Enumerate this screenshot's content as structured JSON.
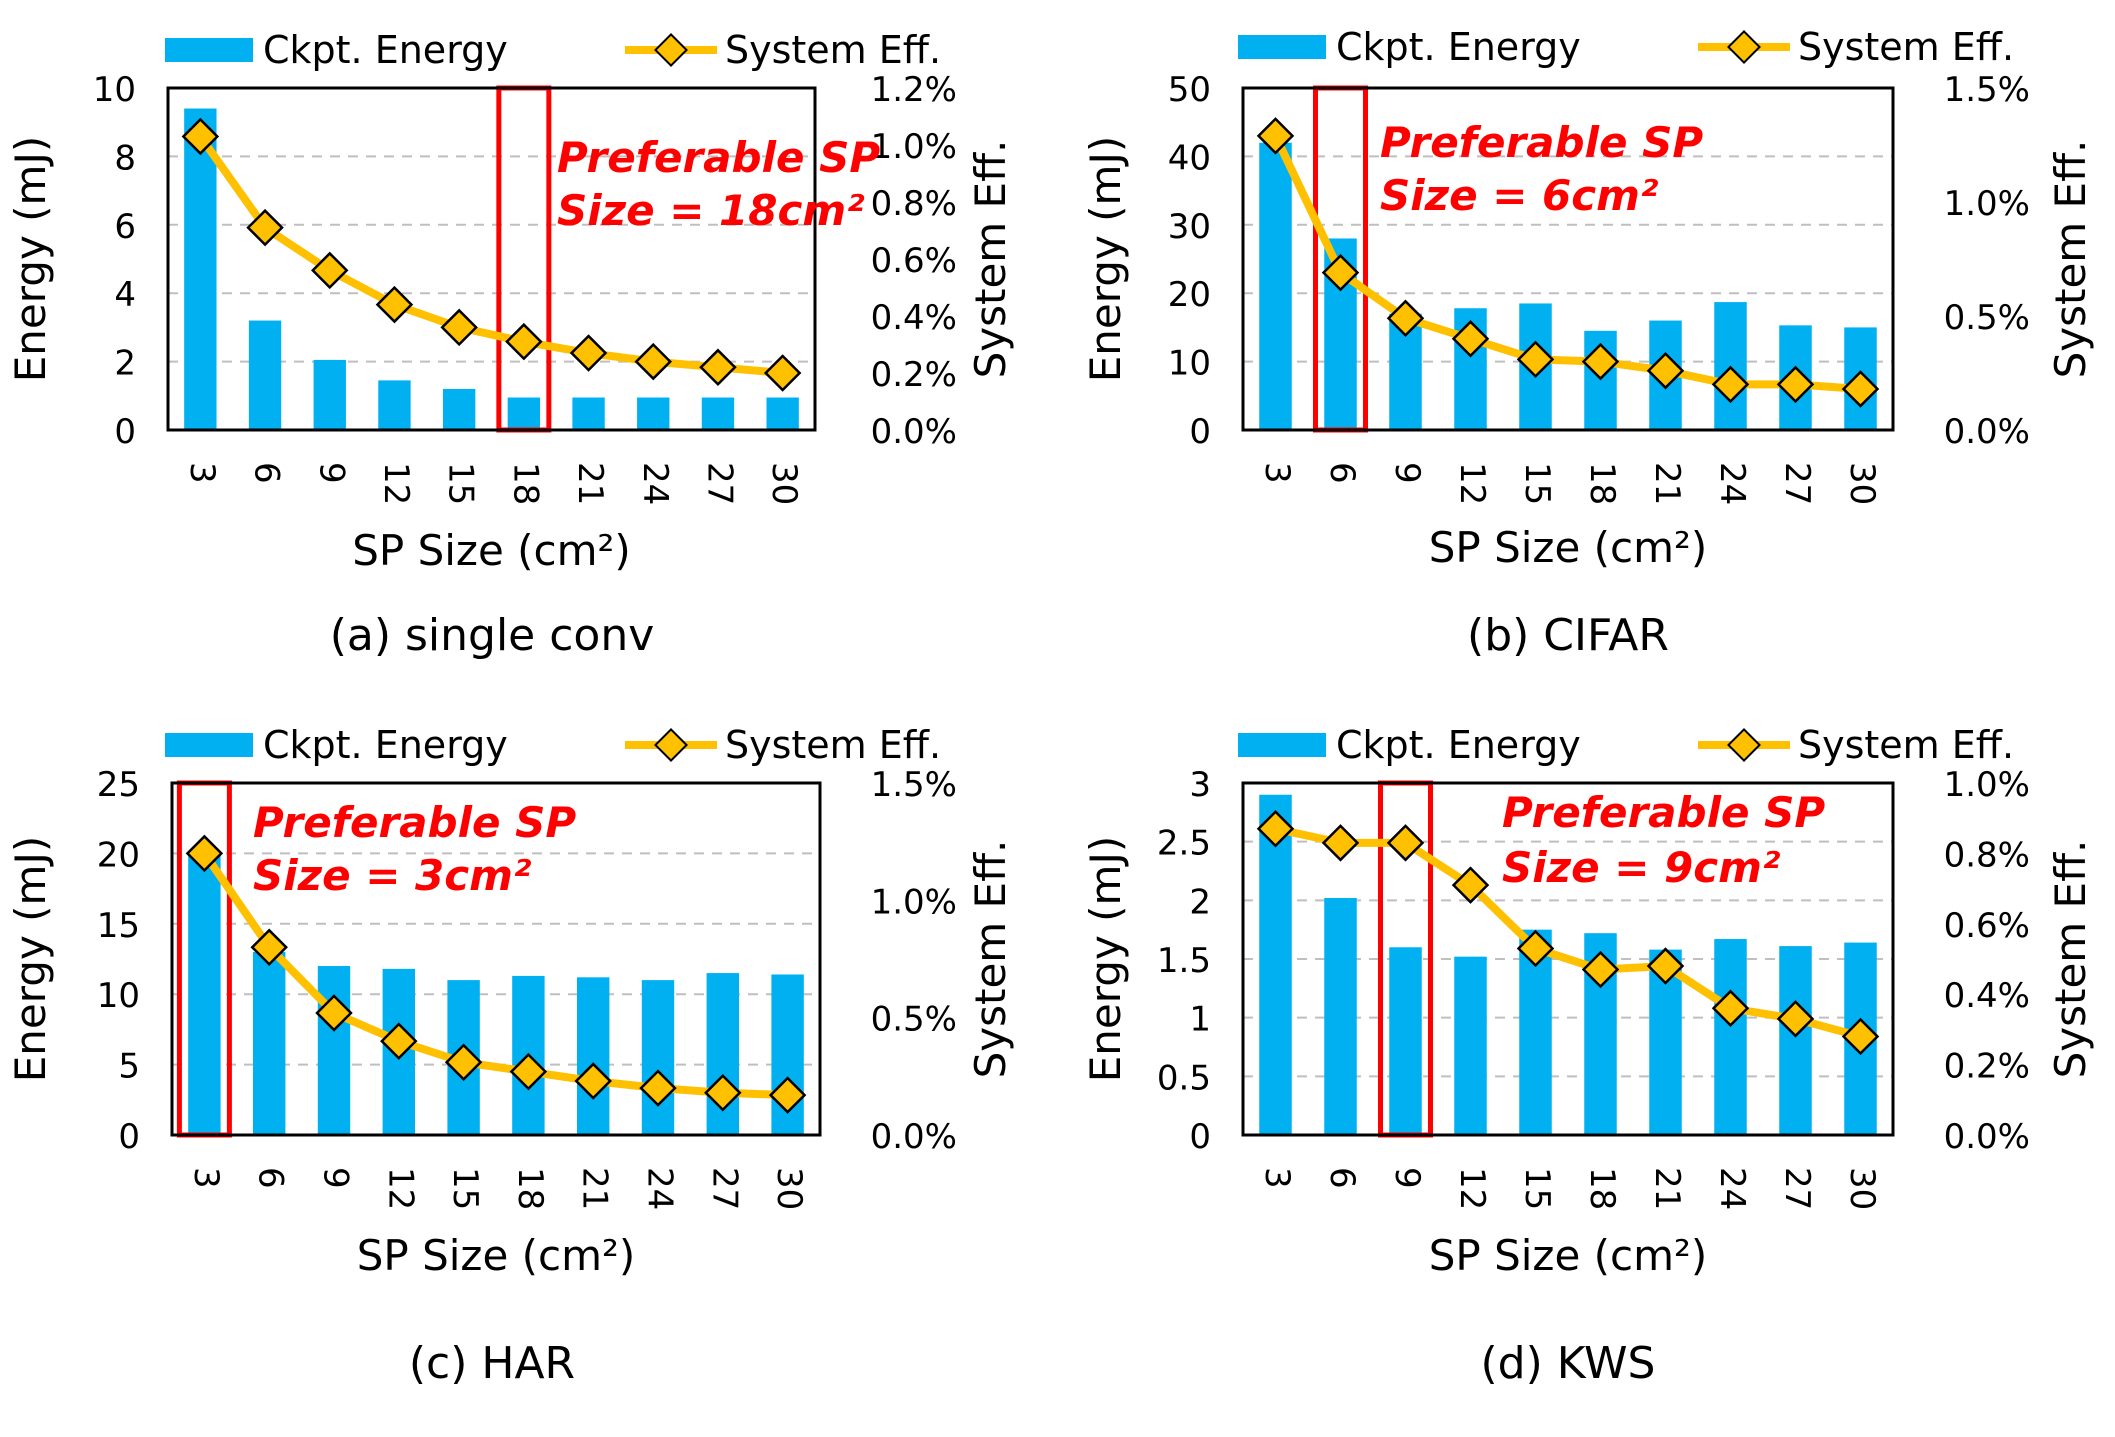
{
  "chart_data": [
    {
      "type": "bar",
      "caption": "(a) single conv",
      "legend": [
        "Ckpt. Energy",
        "System Eff."
      ],
      "legend_position": "top",
      "xlabel": "SP Size (cm²)",
      "ylabel": "Energy (mJ)",
      "y2label": "System Eff.",
      "categories": [
        "3",
        "6",
        "9",
        "12",
        "15",
        "18",
        "21",
        "24",
        "27",
        "30"
      ],
      "ylim": [
        0,
        10
      ],
      "yticks": [
        "0",
        "2",
        "4",
        "6",
        "8",
        "10"
      ],
      "y2lim": [
        0,
        1.2
      ],
      "y2ticks": [
        "0.0%",
        "0.2%",
        "0.4%",
        "0.6%",
        "0.8%",
        "1.0%",
        "1.2%"
      ],
      "grid": true,
      "series": [
        {
          "name": "Ckpt. Energy",
          "kind": "bar",
          "axis": "left",
          "values": [
            9.4,
            3.2,
            2.05,
            1.45,
            1.2,
            0.95,
            0.95,
            0.95,
            0.95,
            0.95
          ]
        },
        {
          "name": "System Eff.",
          "kind": "line",
          "axis": "right",
          "values": [
            1.03,
            0.71,
            0.56,
            0.44,
            0.36,
            0.31,
            0.27,
            0.24,
            0.22,
            0.2
          ]
        }
      ],
      "highlight": {
        "category": "18",
        "label_line1": "Preferable SP",
        "label_line2": "Size = 18cm²",
        "color": "#ff0000"
      }
    },
    {
      "type": "bar",
      "caption": "(b) CIFAR",
      "legend": [
        "Ckpt. Energy",
        "System Eff."
      ],
      "legend_position": "top",
      "xlabel": "SP Size (cm²)",
      "ylabel": "Energy (mJ)",
      "y2label": "System Eff.",
      "categories": [
        "3",
        "6",
        "9",
        "12",
        "15",
        "18",
        "21",
        "24",
        "27",
        "30"
      ],
      "ylim": [
        0,
        50
      ],
      "yticks": [
        "0",
        "10",
        "20",
        "30",
        "40",
        "50"
      ],
      "y2lim": [
        0,
        1.5
      ],
      "y2ticks": [
        "0.0%",
        "0.5%",
        "1.0%",
        "1.5%"
      ],
      "grid": true,
      "series": [
        {
          "name": "Ckpt. Energy",
          "kind": "bar",
          "axis": "left",
          "values": [
            42,
            28,
            17,
            17.8,
            18.5,
            14.5,
            16,
            18.7,
            15.3,
            15
          ]
        },
        {
          "name": "System Eff.",
          "kind": "line",
          "axis": "right",
          "values": [
            1.29,
            0.69,
            0.49,
            0.4,
            0.31,
            0.3,
            0.26,
            0.2,
            0.2,
            0.18
          ]
        }
      ],
      "highlight": {
        "category": "6",
        "label_line1": "Preferable SP",
        "label_line2": "Size = 6cm²",
        "color": "#ff0000"
      }
    },
    {
      "type": "bar",
      "caption": "(c) HAR",
      "legend": [
        "Ckpt. Energy",
        "System Eff."
      ],
      "legend_position": "top",
      "xlabel": "SP Size (cm²)",
      "ylabel": "Energy (mJ)",
      "y2label": "System Eff.",
      "categories": [
        "3",
        "6",
        "9",
        "12",
        "15",
        "18",
        "21",
        "24",
        "27",
        "30"
      ],
      "ylim": [
        0,
        25
      ],
      "yticks": [
        "0",
        "5",
        "10",
        "15",
        "20",
        "25"
      ],
      "y2lim": [
        0,
        1.5
      ],
      "y2ticks": [
        "0.0%",
        "0.5%",
        "1.0%",
        "1.5%"
      ],
      "grid": true,
      "series": [
        {
          "name": "Ckpt. Energy",
          "kind": "bar",
          "axis": "left",
          "values": [
            20,
            13,
            12,
            11.8,
            11,
            11.3,
            11.2,
            11,
            11.5,
            11.4
          ]
        },
        {
          "name": "System Eff.",
          "kind": "line",
          "axis": "right",
          "values": [
            1.2,
            0.8,
            0.52,
            0.4,
            0.31,
            0.27,
            0.23,
            0.2,
            0.18,
            0.17
          ]
        }
      ],
      "highlight": {
        "category": "3",
        "label_line1": "Preferable SP",
        "label_line2": "Size = 3cm²",
        "color": "#ff0000"
      }
    },
    {
      "type": "bar",
      "caption": "(d) KWS",
      "legend": [
        "Ckpt. Energy",
        "System Eff."
      ],
      "legend_position": "top",
      "xlabel": "SP Size (cm²)",
      "ylabel": "Energy (mJ)",
      "y2label": "System Eff.",
      "categories": [
        "3",
        "6",
        "9",
        "12",
        "15",
        "18",
        "21",
        "24",
        "27",
        "30"
      ],
      "ylim": [
        0,
        3
      ],
      "yticks": [
        "0",
        "0.5",
        "1",
        "1.5",
        "2",
        "2.5",
        "3"
      ],
      "y2lim": [
        0,
        1.0
      ],
      "y2ticks": [
        "0.0%",
        "0.2%",
        "0.4%",
        "0.6%",
        "0.8%",
        "1.0%"
      ],
      "grid": true,
      "series": [
        {
          "name": "Ckpt. Energy",
          "kind": "bar",
          "axis": "left",
          "values": [
            2.9,
            2.02,
            1.6,
            1.52,
            1.75,
            1.72,
            1.58,
            1.67,
            1.61,
            1.64
          ]
        },
        {
          "name": "System Eff.",
          "kind": "line",
          "axis": "right",
          "values": [
            0.87,
            0.83,
            0.83,
            0.71,
            0.53,
            0.47,
            0.48,
            0.36,
            0.33,
            0.28
          ]
        }
      ],
      "highlight": {
        "category": "9",
        "label_line1": "Preferable SP",
        "label_line2": "Size = 9cm²",
        "color": "#ff0000"
      }
    }
  ],
  "colors": {
    "bar": "#00b0f0",
    "line": "#ffc000",
    "marker": "#ffc000",
    "marker_stroke": "#000000",
    "highlight": "#ff0000",
    "grid": "#bfbfbf"
  }
}
